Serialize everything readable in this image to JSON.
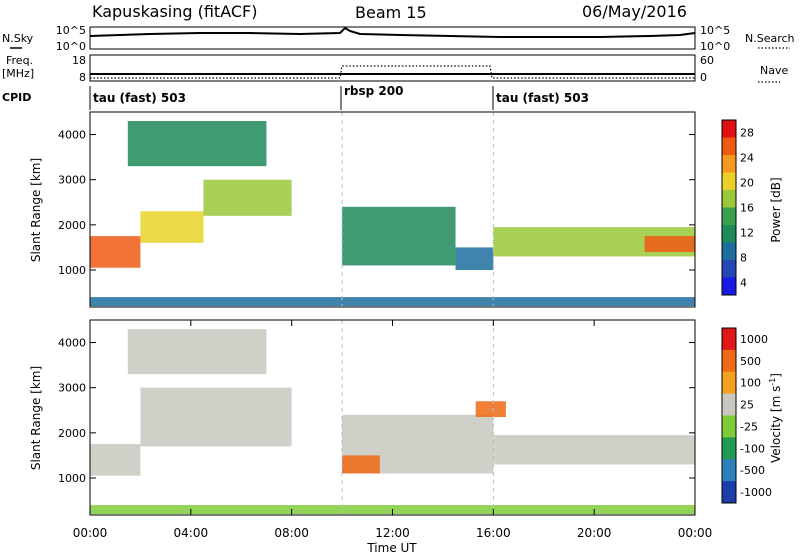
{
  "header": {
    "station": "Kapuskasing (fitACF)",
    "beam": "Beam 15",
    "date": "06/May/2016"
  },
  "side_labels": {
    "nsky": "N.Sky",
    "nsearch": "N.Search",
    "freq": "Freq.",
    "freq_unit": "[MHz]",
    "nave": "Nave",
    "cpid": "CPID"
  },
  "noise_axis": {
    "left_ticks": [
      "10^5",
      "10^0"
    ],
    "right_ticks": [
      "10^5",
      "10^0"
    ]
  },
  "freq_axis": {
    "left_ticks": [
      "18",
      "8"
    ],
    "right_ticks": [
      "60",
      "0"
    ]
  },
  "cpid_segments": [
    {
      "label": "tau (fast) 503",
      "start_hr": 0
    },
    {
      "label": "rbsp 200",
      "start_hr": 10
    },
    {
      "label": "tau (fast) 503",
      "start_hr": 16
    }
  ],
  "colors": {
    "power_scale": [
      "#1a1ae6",
      "#2447b3",
      "#1f6ea0",
      "#1e8a5a",
      "#3aa050",
      "#9ac83a",
      "#e8d22a",
      "#f59a1e",
      "#ee5a14",
      "#e01010"
    ],
    "velocity_scale": [
      "#1c3ea8",
      "#2d7fbd",
      "#1f9a50",
      "#7fcc3a",
      "#c8c8c0",
      "#f5a01e",
      "#ee6a14",
      "#e01818"
    ]
  },
  "chart_data": [
    {
      "type": "heatmap",
      "name": "power",
      "xlabel": "",
      "ylabel": "Slant Range [km]",
      "x_range_hr": [
        0,
        24
      ],
      "ylim": [
        180,
        4500
      ],
      "yticks": [
        1000,
        2000,
        3000,
        4000
      ],
      "colorbar_label": "Power [dB]",
      "colorbar_ticks": [
        "28",
        "24",
        "20",
        "16",
        "12",
        "8",
        "4"
      ],
      "bands": [
        {
          "start_hr": 0.0,
          "end_hr": 2.0,
          "range_km": [
            1050,
            1750
          ],
          "level": 8
        },
        {
          "start_hr": 2.0,
          "end_hr": 4.5,
          "range_km": [
            1600,
            2300
          ],
          "level": 6
        },
        {
          "start_hr": 4.5,
          "end_hr": 8.0,
          "range_km": [
            2200,
            3000
          ],
          "level": 5
        },
        {
          "start_hr": 1.5,
          "end_hr": 7.0,
          "range_km": [
            3300,
            4300
          ],
          "level": 3
        },
        {
          "start_hr": 10.0,
          "end_hr": 14.5,
          "range_km": [
            1100,
            2400
          ],
          "level": 3
        },
        {
          "start_hr": 14.5,
          "end_hr": 16.0,
          "range_km": [
            1000,
            1500
          ],
          "level": 2
        },
        {
          "start_hr": 16.0,
          "end_hr": 24.0,
          "range_km": [
            1300,
            1950
          ],
          "level": 5
        },
        {
          "start_hr": 22.0,
          "end_hr": 24.0,
          "range_km": [
            1400,
            1750
          ],
          "level": 8
        },
        {
          "start_hr": 0.0,
          "end_hr": 24.0,
          "range_km": [
            200,
            400
          ],
          "level": 2
        }
      ]
    },
    {
      "type": "heatmap",
      "name": "velocity",
      "xlabel": "Time UT",
      "ylabel": "Slant Range [km]",
      "x_range_hr": [
        0,
        24
      ],
      "xticks": [
        "00:00",
        "04:00",
        "08:00",
        "12:00",
        "16:00",
        "20:00",
        "00:00"
      ],
      "ylim": [
        180,
        4500
      ],
      "yticks": [
        1000,
        2000,
        3000,
        4000
      ],
      "colorbar_label": "Velocity [m s^-1]",
      "colorbar_ticks": [
        "1000",
        "500",
        "100",
        "25",
        "-25",
        "-100",
        "-500",
        "-1000"
      ],
      "bands": [
        {
          "start_hr": 0.0,
          "end_hr": 2.0,
          "range_km": [
            1050,
            1750
          ],
          "level": 4
        },
        {
          "start_hr": 2.0,
          "end_hr": 8.0,
          "range_km": [
            1700,
            3000
          ],
          "level": 4
        },
        {
          "start_hr": 1.5,
          "end_hr": 7.0,
          "range_km": [
            3300,
            4300
          ],
          "level": 4
        },
        {
          "start_hr": 10.0,
          "end_hr": 16.0,
          "range_km": [
            1100,
            2400
          ],
          "level": 4
        },
        {
          "start_hr": 10.0,
          "end_hr": 11.5,
          "range_km": [
            1100,
            1500
          ],
          "level": 6
        },
        {
          "start_hr": 15.3,
          "end_hr": 16.5,
          "range_km": [
            2350,
            2700
          ],
          "level": 6
        },
        {
          "start_hr": 16.0,
          "end_hr": 24.0,
          "range_km": [
            1300,
            1950
          ],
          "level": 4
        },
        {
          "start_hr": 0.0,
          "end_hr": 24.0,
          "range_km": [
            200,
            400
          ],
          "level": 3
        }
      ]
    }
  ]
}
